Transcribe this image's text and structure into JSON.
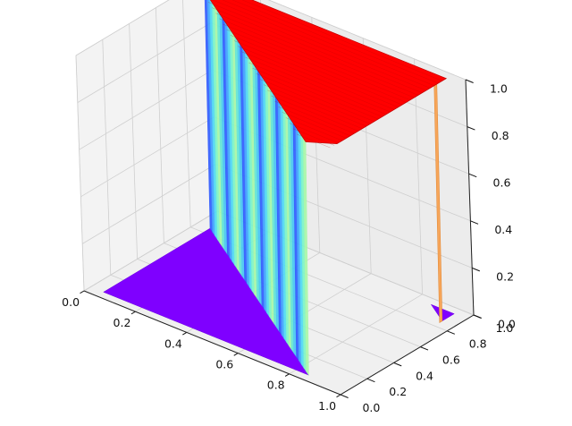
{
  "chart_data": {
    "type": "surface3d",
    "title": "",
    "xlabel": "",
    "ylabel": "",
    "zlabel": "",
    "xlim": [
      0,
      1
    ],
    "ylim": [
      0,
      1
    ],
    "zlim": [
      0,
      1
    ],
    "x_ticks": [
      "0.0",
      "0.2",
      "0.4",
      "0.6",
      "0.8",
      "1.0"
    ],
    "y_ticks": [
      "0.0",
      "0.2",
      "0.4",
      "0.6",
      "0.8",
      "1.0"
    ],
    "z_ticks": [
      "0.0",
      "0.2",
      "0.4",
      "0.6",
      "0.8",
      "1.0"
    ],
    "colormap": "rainbow",
    "grid": true,
    "surface": {
      "description_regions": [
        {
          "z": 0.0,
          "polygon_xy": [
            [
              0.05,
              0.05
            ],
            [
              0.85,
              0.05
            ],
            [
              0.05,
              0.85
            ]
          ]
        },
        {
          "z": 1.0,
          "polygon_xy": [
            [
              0.87,
              0.05
            ],
            [
              0.95,
              0.13
            ],
            [
              0.95,
              0.95
            ],
            [
              0.05,
              0.95
            ],
            [
              0.05,
              0.87
            ]
          ]
        },
        {
          "z": 0.0,
          "polygon_xy": [
            [
              0.95,
              0.86
            ],
            [
              0.95,
              0.95
            ],
            [
              0.86,
              0.95
            ]
          ]
        }
      ],
      "low_color": "#7f00ff",
      "high_color": "#ff0000"
    }
  }
}
